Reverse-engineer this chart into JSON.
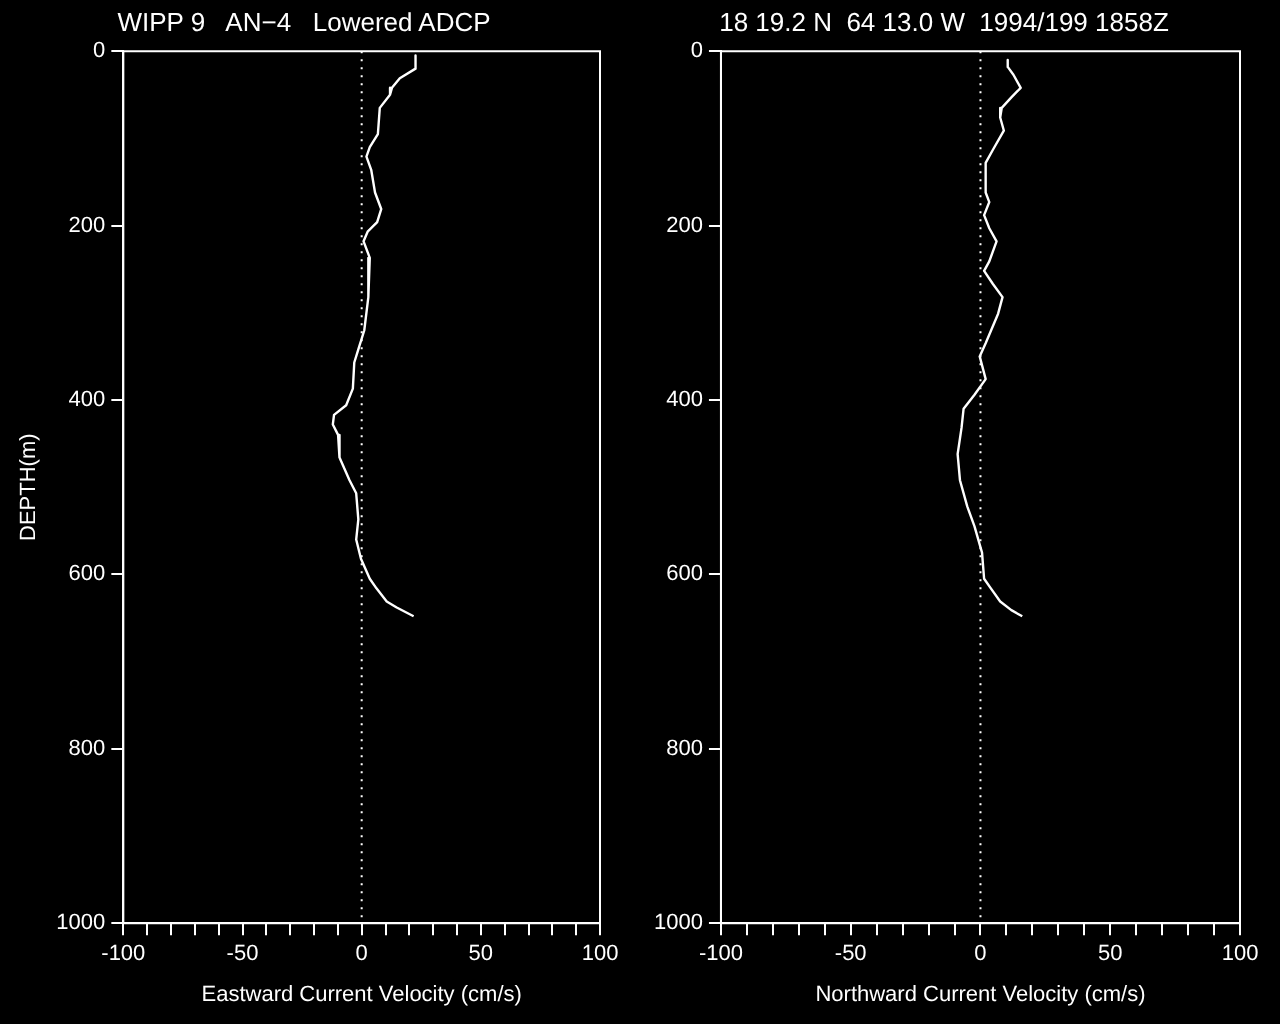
{
  "chart_data": [
    {
      "type": "line",
      "title": "WIPP 9   AN−4   Lowered ADCP",
      "xlabel": "Eastward Current Velocity (cm/s)",
      "ylabel": "DEPTH(m)",
      "xlim": [
        -100,
        100
      ],
      "xticks": [
        -100,
        {
          "value": -90,
          "label": null
        },
        {
          "value": -80,
          "label": null
        },
        {
          "value": -70,
          "label": null
        },
        {
          "value": -60,
          "label": null
        },
        -50,
        {
          "value": -40,
          "label": null
        },
        {
          "value": -30,
          "label": null
        },
        {
          "value": -20,
          "label": null
        },
        {
          "value": -10,
          "label": null
        },
        0,
        {
          "value": 10,
          "label": null
        },
        {
          "value": 20,
          "label": null
        },
        {
          "value": 30,
          "label": null
        },
        {
          "value": 40,
          "label": null
        },
        50,
        {
          "value": 60,
          "label": null
        },
        {
          "value": 70,
          "label": null
        },
        {
          "value": 80,
          "label": null
        },
        {
          "value": 90,
          "label": null
        },
        100
      ],
      "ylim": [
        1000,
        0
      ],
      "yticks": [
        0,
        200,
        400,
        600,
        800,
        1000
      ],
      "grid": false,
      "legend": false,
      "marker": "none",
      "line_style": "solid",
      "ref_lines": [
        {
          "axis": "x",
          "value": 0,
          "color": "#ffffff",
          "line_style": "dotted"
        }
      ],
      "series": [
        {
          "color": "#ffffff",
          "x": [
            22.6,
            22.6,
            16,
            12.7,
            11.9,
            7.6,
            6.8,
            3.4,
            2.0,
            4.0,
            5.6,
            8.2,
            6.5,
            2.5,
            0.8,
            3.4,
            2.8,
            1.1,
            -1.4,
            -3.1,
            -3.7,
            -6.5,
            -11.6,
            -12.1,
            -9.9,
            -9.3,
            -5.1,
            -2.3,
            -1.4,
            -2.3,
            -0.3,
            3.4,
            6.2,
            10.5,
            14.7,
            21.8
          ],
          "values": [
            5,
            20,
            31,
            42,
            50,
            65,
            95,
            110,
            121,
            136,
            162,
            181,
            196,
            207,
            218,
            237,
            282,
            320,
            342,
            357,
            387,
            406,
            417,
            428,
            440,
            466,
            492,
            507,
            537,
            560,
            582,
            605,
            616,
            631,
            638,
            648
          ]
        }
      ]
    },
    {
      "type": "line",
      "title": "18 19.2 N  64 13.0 W  1994/199 1858Z",
      "xlabel": "Northward Current Velocity (cm/s)",
      "xlim": [
        -100,
        100
      ],
      "xticks": [
        -100,
        {
          "value": -90,
          "label": null
        },
        {
          "value": -80,
          "label": null
        },
        {
          "value": -70,
          "label": null
        },
        {
          "value": -60,
          "label": null
        },
        -50,
        {
          "value": -40,
          "label": null
        },
        {
          "value": -30,
          "label": null
        },
        {
          "value": -20,
          "label": null
        },
        {
          "value": -10,
          "label": null
        },
        0,
        {
          "value": 10,
          "label": null
        },
        {
          "value": 20,
          "label": null
        },
        {
          "value": 30,
          "label": null
        },
        {
          "value": 40,
          "label": null
        },
        50,
        {
          "value": 60,
          "label": null
        },
        {
          "value": 70,
          "label": null
        },
        {
          "value": 80,
          "label": null
        },
        {
          "value": 90,
          "label": null
        },
        100
      ],
      "ylim": [
        1000,
        0
      ],
      "yticks": [
        0,
        200,
        400,
        600,
        800,
        1000
      ],
      "grid": false,
      "legend": false,
      "marker": "none",
      "line_style": "solid",
      "ref_lines": [
        {
          "axis": "x",
          "value": 0,
          "color": "#ffffff",
          "line_style": "dotted"
        }
      ],
      "series": [
        {
          "color": "#ffffff",
          "x": [
            10.5,
            10.5,
            12.7,
            15.5,
            11.9,
            8.2,
            7.6,
            9.0,
            4.8,
            2.0,
            2.0,
            3.4,
            1.4,
            3.4,
            6.2,
            3.4,
            1.4,
            4.8,
            8.5,
            6.8,
            2.0,
            -0.3,
            2.0,
            -2.3,
            -6.5,
            -7.3,
            -8.8,
            -7.9,
            -5.1,
            -2.3,
            0.6,
            1.4,
            4.0,
            7.6,
            11.9,
            16.1
          ],
          "values": [
            10,
            18,
            27,
            42,
            53,
            65,
            76,
            91,
            113,
            128,
            162,
            173,
            188,
            203,
            218,
            241,
            252,
            267,
            282,
            301,
            335,
            350,
            376,
            394,
            410,
            432,
            462,
            492,
            522,
            545,
            575,
            605,
            616,
            631,
            641,
            648
          ]
        }
      ]
    }
  ]
}
